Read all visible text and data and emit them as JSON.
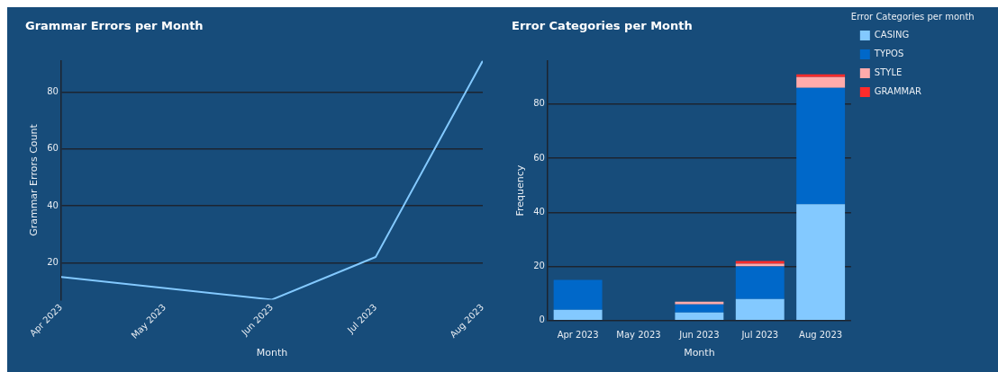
{
  "chart_data": [
    {
      "type": "line",
      "title": "Grammar Errors per Month",
      "xlabel": "Month",
      "ylabel": "Grammar Errors Count",
      "x": [
        "2023-04",
        "2023-06",
        "2023-07",
        "2023-08"
      ],
      "values": [
        15,
        7,
        22,
        91
      ],
      "color": "#83c9ff",
      "xlim": [
        "2023-04",
        "2023-08"
      ],
      "xticks": [
        {
          "value": "2023-04",
          "label": "Apr 2023"
        },
        {
          "value": "2023-05",
          "label": "May 2023"
        },
        {
          "value": "2023-06",
          "label": "Jun 2023"
        },
        {
          "value": "2023-07",
          "label": "Jul 2023"
        },
        {
          "value": "2023-08",
          "label": "Aug 2023"
        }
      ],
      "ylim": [
        7,
        91
      ],
      "yticks": [
        20,
        40,
        60,
        80
      ],
      "grid": "y",
      "legend": false,
      "marker": "none",
      "line_style": "solid"
    },
    {
      "type": "bar",
      "title": "Error Categories per Month",
      "xlabel": "Month",
      "ylabel": "Frequency",
      "legend_title": "Error Categories per month",
      "categories": [
        "Apr 2023",
        "May 2023",
        "Jun 2023",
        "Jul 2023",
        "Aug 2023"
      ],
      "stacked": true,
      "series": [
        {
          "name": "CASING",
          "color": "#83c9ff",
          "values": [
            4,
            0,
            3,
            8,
            43
          ]
        },
        {
          "name": "TYPOS",
          "color": "#0068c9",
          "values": [
            11,
            0,
            3,
            12,
            43
          ]
        },
        {
          "name": "STYLE",
          "color": "#ffabab",
          "values": [
            0,
            0,
            1,
            1,
            4
          ]
        },
        {
          "name": "GRAMMAR",
          "color": "#ff2b2b",
          "values": [
            0,
            0,
            0,
            1,
            1
          ]
        }
      ],
      "ylim": [
        0,
        96
      ],
      "yticks": [
        0,
        20,
        40,
        60,
        80
      ],
      "grid": "y",
      "legend": "top right"
    }
  ]
}
